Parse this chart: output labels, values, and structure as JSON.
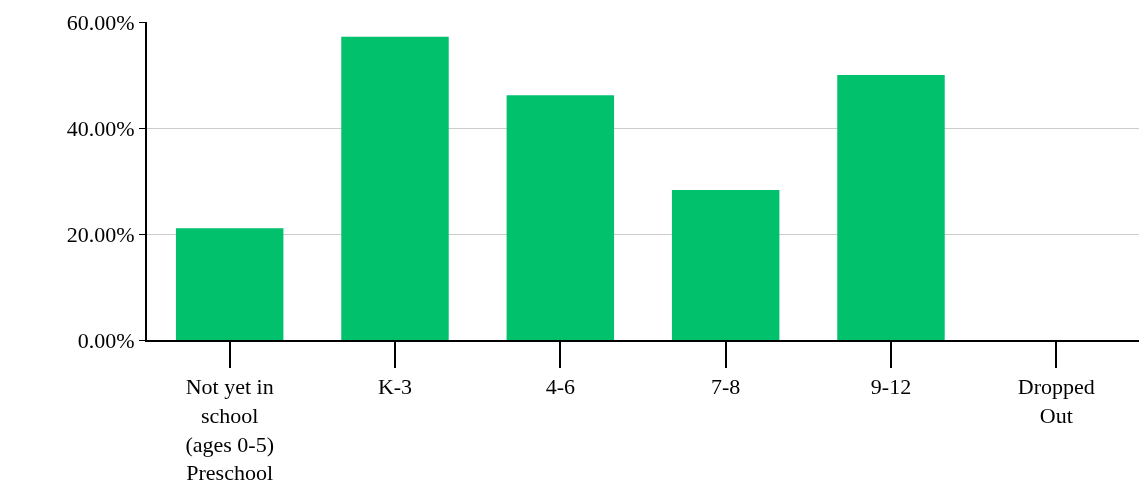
{
  "chart_data": {
    "type": "bar",
    "categories": [
      "Not yet in school (ages 0-5) Preschool",
      "K-3",
      "4-6",
      "7-8",
      "9-12",
      "Dropped Out"
    ],
    "values": [
      21.1,
      57.2,
      46.2,
      28.3,
      50,
      0
    ],
    "color": "#02c16d",
    "ylim": [
      0,
      60
    ],
    "yticks": [
      {
        "value": 0,
        "label": "0.00%"
      },
      {
        "value": 20,
        "label": "20.00%"
      },
      {
        "value": 40,
        "label": "40.00%"
      },
      {
        "value": 60,
        "label": "60.00%"
      }
    ],
    "grid": "y"
  }
}
